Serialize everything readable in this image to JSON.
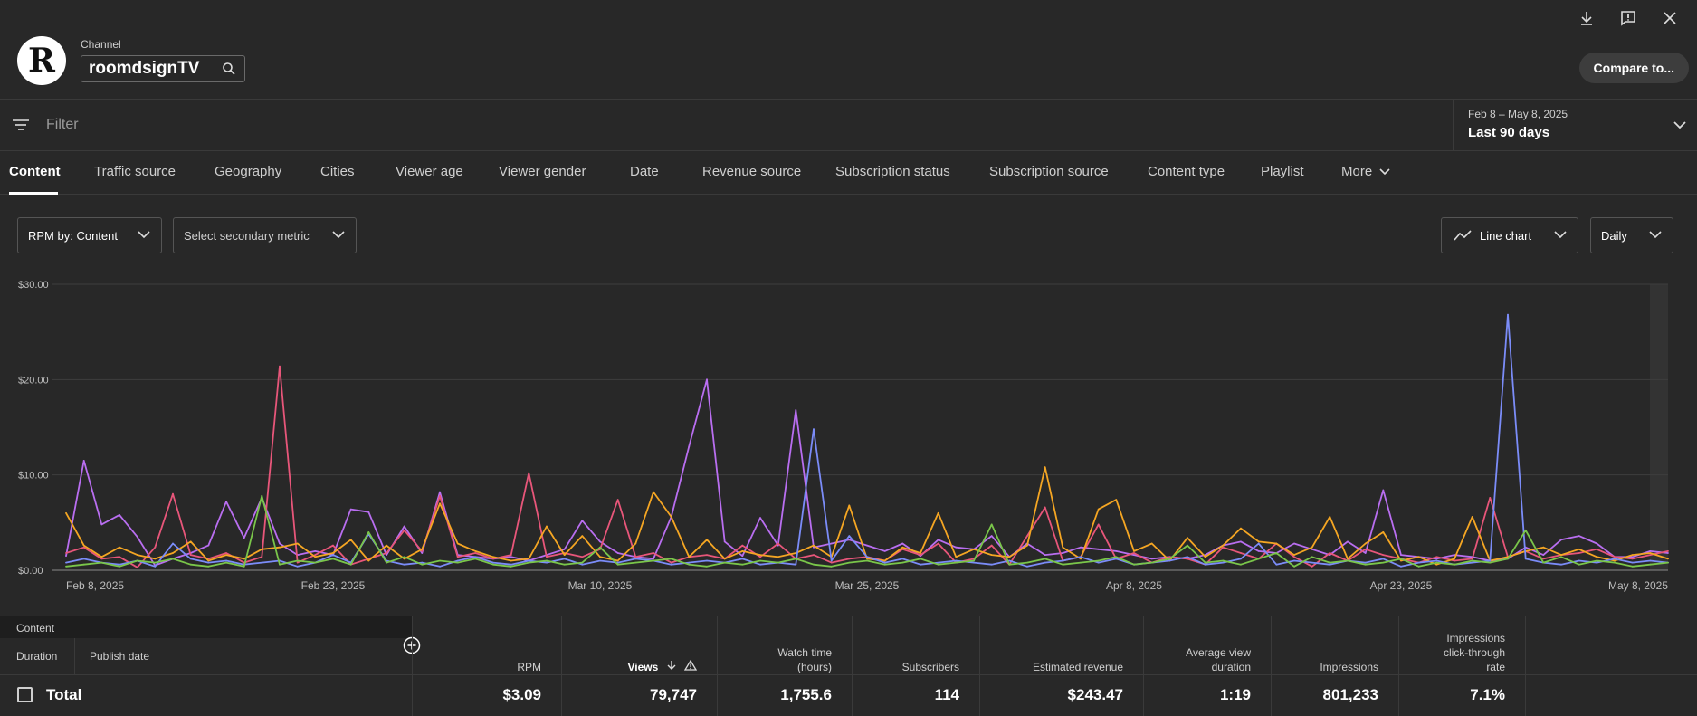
{
  "header": {
    "logo_letter": "R",
    "channel_label": "Channel",
    "channel_name": "roomdsignTV",
    "compare_label": "Compare to..."
  },
  "filter": {
    "placeholder": "Filter"
  },
  "date_range": {
    "range": "Feb 8 – May 8, 2025",
    "label": "Last 90 days"
  },
  "tabs": [
    "Content",
    "Traffic source",
    "Geography",
    "Cities",
    "Viewer age",
    "Viewer gender",
    "Date",
    "Revenue source",
    "Subscription status",
    "Subscription source",
    "Content type",
    "Playlist",
    "More"
  ],
  "controls": {
    "metric": "RPM by: Content",
    "secondary": "Select secondary metric",
    "chart_type": "Line chart",
    "granularity": "Daily"
  },
  "chart_data": {
    "type": "line",
    "y_ticks": [
      "$30.00",
      "$20.00",
      "$10.00",
      "$0.00"
    ],
    "ylim": [
      0,
      30
    ],
    "x_ticks": [
      "Feb 8, 2025",
      "Feb 23, 2025",
      "Mar 10, 2025",
      "Mar 25, 2025",
      "Apr 8, 2025",
      "Apr 23, 2025",
      "May 8, 2025"
    ],
    "series_colors": [
      "#b96ef0",
      "#e8567a",
      "#f5a623",
      "#7b8cf8",
      "#7ac64a"
    ],
    "series": [
      {
        "values": [
          1.5,
          11.5,
          4.8,
          5.8,
          3.5,
          0.5,
          1.2,
          1.8,
          2.6,
          7.2,
          3.4,
          7.6,
          2.8,
          1.6,
          2.0,
          1.6,
          6.4,
          6.1,
          1.6,
          4.6,
          1.8,
          8.2,
          1.6,
          1.4,
          1.2,
          1.4,
          1.0,
          1.6,
          2.2,
          5.2,
          3.0,
          1.8,
          1.4,
          1.2,
          5.6,
          13.0,
          20.0,
          3.0,
          1.5,
          5.5,
          2.6,
          16.8,
          2.4,
          2.8,
          3.2,
          2.6,
          2.0,
          2.8,
          1.5,
          3.2,
          2.4,
          2.2,
          3.6,
          1.4,
          2.8,
          1.6,
          1.8,
          2.4,
          2.2,
          2.0,
          1.6,
          1.2,
          1.4,
          1.2,
          1.6,
          2.6,
          3.0,
          2.0,
          1.8,
          2.8,
          2.2,
          1.6,
          3.0,
          1.8,
          8.4,
          1.6,
          1.4,
          1.2,
          1.6,
          1.4,
          1.0,
          1.2,
          2.4,
          1.6,
          3.2,
          3.6,
          2.8,
          1.4,
          1.4,
          2.0,
          1.8
        ]
      },
      {
        "values": [
          1.8,
          2.4,
          1.2,
          1.4,
          0.3,
          2.4,
          8.0,
          1.6,
          1.2,
          1.8,
          0.8,
          1.4,
          21.4,
          0.8,
          1.6,
          2.6,
          0.6,
          1.2,
          1.8,
          4.2,
          2.0,
          7.8,
          1.4,
          1.8,
          1.2,
          1.6,
          10.2,
          1.4,
          1.8,
          1.4,
          2.2,
          7.4,
          1.4,
          1.8,
          0.8,
          1.4,
          1.6,
          1.2,
          2.6,
          1.4,
          2.8,
          1.2,
          1.6,
          0.8,
          1.2,
          1.4,
          1.0,
          2.2,
          1.6,
          2.8,
          0.8,
          1.2,
          2.6,
          0.6,
          3.6,
          6.6,
          1.0,
          1.4,
          4.8,
          1.2,
          1.8,
          0.8,
          1.4,
          1.2,
          0.6,
          2.4,
          1.8,
          1.2,
          2.8,
          1.4,
          0.4,
          1.8,
          1.0,
          2.2,
          1.6,
          1.2,
          0.8,
          1.4,
          1.0,
          1.2,
          7.6,
          1.4,
          2.0,
          1.2,
          1.6,
          1.8,
          2.2,
          1.4,
          1.2,
          1.6,
          2.0
        ]
      },
      {
        "values": [
          6.0,
          2.6,
          1.4,
          2.4,
          1.6,
          1.2,
          1.8,
          3.0,
          1.0,
          1.6,
          1.2,
          2.2,
          2.4,
          2.8,
          1.4,
          1.8,
          3.2,
          1.0,
          2.6,
          1.2,
          2.2,
          7.0,
          2.8,
          2.0,
          1.4,
          1.0,
          1.2,
          4.6,
          1.6,
          3.6,
          1.4,
          1.0,
          2.8,
          8.2,
          5.6,
          1.4,
          3.2,
          1.2,
          2.0,
          1.6,
          1.4,
          1.8,
          2.6,
          1.4,
          6.8,
          1.2,
          1.0,
          2.4,
          1.8,
          6.0,
          1.4,
          2.2,
          1.6,
          1.4,
          2.6,
          10.8,
          2.4,
          1.2,
          6.4,
          7.4,
          2.0,
          2.8,
          1.0,
          3.4,
          1.4,
          2.6,
          4.4,
          3.0,
          2.8,
          1.6,
          2.4,
          5.6,
          1.2,
          2.8,
          4.0,
          1.0,
          1.4,
          0.6,
          1.2,
          5.6,
          1.0,
          1.4,
          2.0,
          2.4,
          1.6,
          2.2,
          1.4,
          1.0,
          1.6,
          1.8,
          1.2
        ]
      },
      {
        "values": [
          0.8,
          1.2,
          0.8,
          0.6,
          1.0,
          0.4,
          2.8,
          1.2,
          0.8,
          1.0,
          0.6,
          0.8,
          1.0,
          0.4,
          0.8,
          1.6,
          0.8,
          3.8,
          1.0,
          0.6,
          0.8,
          0.4,
          1.0,
          1.4,
          0.8,
          0.6,
          1.0,
          0.8,
          1.2,
          0.6,
          1.0,
          0.8,
          1.2,
          1.0,
          0.6,
          0.8,
          1.0,
          0.8,
          1.2,
          0.6,
          0.8,
          0.6,
          14.8,
          1.0,
          3.6,
          1.4,
          0.8,
          1.2,
          0.6,
          0.8,
          1.0,
          0.8,
          0.6,
          1.0,
          0.4,
          0.8,
          1.0,
          1.4,
          0.8,
          1.2,
          0.6,
          0.8,
          1.0,
          1.4,
          0.6,
          0.8,
          1.2,
          2.8,
          0.6,
          1.0,
          0.8,
          0.6,
          1.0,
          0.8,
          1.2,
          0.4,
          0.8,
          1.0,
          0.6,
          0.8,
          1.0,
          26.8,
          1.2,
          0.8,
          0.6,
          1.0,
          0.8,
          1.2,
          0.8,
          1.0,
          0.8
        ]
      },
      {
        "values": [
          0.4,
          0.6,
          0.8,
          0.4,
          1.0,
          0.8,
          1.2,
          0.6,
          0.4,
          0.8,
          0.4,
          7.8,
          0.6,
          1.0,
          0.8,
          1.2,
          0.6,
          4.0,
          0.8,
          1.4,
          0.6,
          1.0,
          0.8,
          1.2,
          0.6,
          0.4,
          0.8,
          1.0,
          0.6,
          0.8,
          2.4,
          0.6,
          0.8,
          1.0,
          1.2,
          0.6,
          0.4,
          0.8,
          0.6,
          1.0,
          0.8,
          1.2,
          0.6,
          0.4,
          0.8,
          1.0,
          0.6,
          0.8,
          1.2,
          0.6,
          0.8,
          1.0,
          4.8,
          0.6,
          0.8,
          1.2,
          0.6,
          0.8,
          1.0,
          1.4,
          0.6,
          0.8,
          1.2,
          2.6,
          0.8,
          1.0,
          0.6,
          1.2,
          1.8,
          0.4,
          1.4,
          0.8,
          1.0,
          0.6,
          0.8,
          1.2,
          0.4,
          0.8,
          0.6,
          1.0,
          0.8,
          1.2,
          4.2,
          0.8,
          1.4,
          0.6,
          1.0,
          0.8,
          0.4,
          0.6,
          0.8
        ]
      }
    ]
  },
  "table": {
    "content_header": "Content",
    "duration_header": "Duration",
    "publish_header": "Publish date",
    "total_label": "Total",
    "columns": [
      {
        "header": "RPM",
        "value": "$3.09"
      },
      {
        "header": "Views",
        "value": "79,747"
      },
      {
        "header": "Watch time (hours)",
        "value": "1,755.6"
      },
      {
        "header": "Subscribers",
        "value": "114"
      },
      {
        "header": "Estimated revenue",
        "value": "$243.47"
      },
      {
        "header": "Average view duration",
        "value": "1:19"
      },
      {
        "header": "Impressions",
        "value": "801,233"
      },
      {
        "header": "Impressions click-through rate",
        "value": "7.1%"
      }
    ]
  }
}
